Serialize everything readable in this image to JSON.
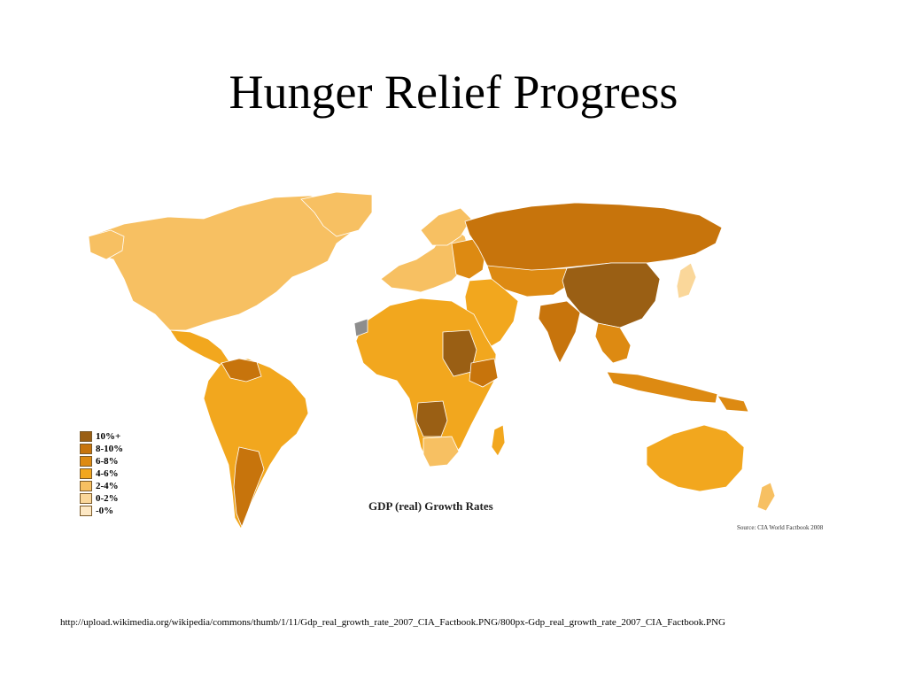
{
  "slide": {
    "title": "Hunger Relief Progress",
    "footer_url": "http://upload.wikimedia.org/wikipedia/commons/thumb/1/11/Gdp_real_growth_rate_2007_CIA_Factbook.PNG/800px-Gdp_real_growth_rate_2007_CIA_Factbook.PNG"
  },
  "map": {
    "caption": "GDP (real) Growth Rates",
    "source": "Source: CIA World Factbook 2008",
    "legend": [
      {
        "label": "10%+",
        "color": "#9a5f14"
      },
      {
        "label": "8-10%",
        "color": "#c7740c"
      },
      {
        "label": "6-8%",
        "color": "#dd8a12"
      },
      {
        "label": "4-6%",
        "color": "#f2a71e"
      },
      {
        "label": "2-4%",
        "color": "#f7c062"
      },
      {
        "label": "0-2%",
        "color": "#fad79a"
      },
      {
        "label": "-0%",
        "color": "#fde8c4"
      }
    ],
    "no_data_color": "#8d8d8d"
  }
}
